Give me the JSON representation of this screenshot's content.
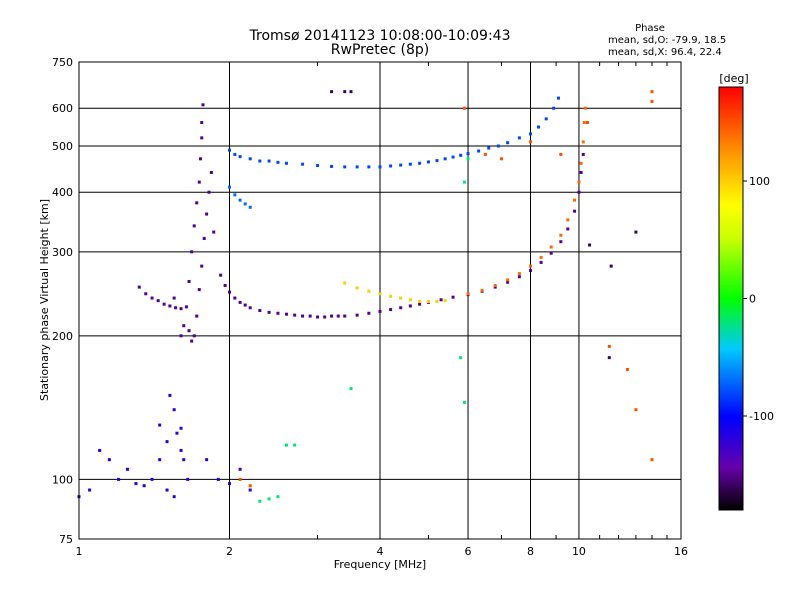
{
  "chart_data": {
    "type": "scatter",
    "title": "Tromsø 20141123 10:08:00-10:09:43",
    "subtitle": "RwPretec (8p)",
    "xlabel": "Frequency [MHz]",
    "ylabel": "Stationary phase Virtual Height [km]",
    "xscale": "log",
    "yscale": "log",
    "xlim": [
      1,
      16
    ],
    "ylim": [
      75,
      750
    ],
    "x_ticks": [
      "1",
      "2",
      "4",
      "6",
      "8",
      "10",
      "16"
    ],
    "x_tick_values": [
      1,
      2,
      4,
      6,
      8,
      10,
      16
    ],
    "y_ticks": [
      "75",
      "100",
      "200",
      "300",
      "400",
      "500",
      "600",
      "750"
    ],
    "y_tick_values": [
      75,
      100,
      200,
      300,
      400,
      500,
      600,
      750
    ],
    "grid": true,
    "phase_info": {
      "heading": "Phase",
      "line_o": "mean, sd,O: -79.9, 18.5",
      "line_x": "mean, sd,X:  96.4, 22.4"
    },
    "colorbar": {
      "label": "[deg]",
      "range": [
        -180,
        180
      ],
      "ticks": [
        "100",
        "0",
        "-100"
      ],
      "tick_values": [
        100,
        0,
        -100
      ]
    },
    "series": [
      {
        "color_phase": -150,
        "points": [
          [
            1.32,
            253
          ],
          [
            1.36,
            245
          ],
          [
            1.4,
            240
          ],
          [
            1.44,
            237
          ],
          [
            1.48,
            233
          ],
          [
            1.52,
            231
          ],
          [
            1.56,
            229
          ],
          [
            1.6,
            228
          ],
          [
            1.55,
            240
          ],
          [
            1.6,
            200
          ],
          [
            1.62,
            210
          ],
          [
            1.64,
            230
          ],
          [
            1.66,
            260
          ],
          [
            1.68,
            300
          ],
          [
            1.7,
            340
          ],
          [
            1.72,
            380
          ],
          [
            1.74,
            420
          ],
          [
            1.75,
            470
          ],
          [
            1.76,
            520
          ],
          [
            1.76,
            560
          ],
          [
            1.77,
            610
          ],
          [
            1.7,
            200
          ],
          [
            1.72,
            220
          ],
          [
            1.74,
            250
          ],
          [
            1.76,
            280
          ],
          [
            1.78,
            320
          ],
          [
            1.8,
            360
          ],
          [
            1.82,
            400
          ],
          [
            1.84,
            440
          ],
          [
            1.86,
            330
          ],
          [
            1.68,
            195
          ],
          [
            1.66,
            205
          ]
        ]
      },
      {
        "color_phase": -150,
        "points": [
          [
            1.92,
            268
          ],
          [
            1.96,
            255
          ],
          [
            2.0,
            247
          ],
          [
            2.05,
            240
          ],
          [
            2.1,
            235
          ],
          [
            2.15,
            232
          ],
          [
            2.2,
            229
          ],
          [
            2.3,
            226
          ],
          [
            2.4,
            224
          ],
          [
            2.5,
            223
          ],
          [
            2.6,
            222
          ],
          [
            2.7,
            221
          ],
          [
            2.8,
            220
          ],
          [
            2.9,
            220
          ],
          [
            3.0,
            219
          ],
          [
            3.1,
            219
          ],
          [
            3.2,
            220
          ],
          [
            3.3,
            220
          ],
          [
            3.4,
            220
          ],
          [
            3.6,
            221
          ],
          [
            3.8,
            223
          ],
          [
            4.0,
            225
          ],
          [
            4.2,
            227
          ],
          [
            4.4,
            229
          ],
          [
            4.6,
            231
          ],
          [
            4.8,
            233
          ],
          [
            5.0,
            235
          ],
          [
            5.3,
            238
          ],
          [
            5.6,
            241
          ],
          [
            6.0,
            244
          ],
          [
            6.4,
            248
          ],
          [
            6.8,
            253
          ],
          [
            7.2,
            259
          ],
          [
            7.6,
            266
          ],
          [
            8.0,
            274
          ],
          [
            8.4,
            285
          ],
          [
            8.8,
            298
          ],
          [
            9.2,
            315
          ],
          [
            9.5,
            335
          ],
          [
            9.8,
            365
          ],
          [
            10.0,
            400
          ],
          [
            10.1,
            440
          ],
          [
            10.2,
            480
          ]
        ]
      },
      {
        "color_phase": -80,
        "points": [
          [
            2.0,
            490
          ],
          [
            2.05,
            480
          ],
          [
            2.1,
            475
          ],
          [
            2.2,
            470
          ],
          [
            2.3,
            465
          ],
          [
            2.4,
            465
          ],
          [
            2.5,
            462
          ],
          [
            2.6,
            460
          ],
          [
            2.8,
            458
          ],
          [
            3.0,
            455
          ],
          [
            3.2,
            453
          ],
          [
            3.4,
            452
          ],
          [
            3.6,
            452
          ],
          [
            3.8,
            452
          ],
          [
            4.0,
            452
          ],
          [
            4.2,
            454
          ],
          [
            4.4,
            456
          ],
          [
            4.6,
            458
          ],
          [
            4.8,
            460
          ],
          [
            5.0,
            463
          ],
          [
            5.2,
            466
          ],
          [
            5.4,
            470
          ],
          [
            5.6,
            474
          ],
          [
            5.8,
            478
          ],
          [
            6.0,
            482
          ],
          [
            6.3,
            488
          ],
          [
            6.6,
            495
          ],
          [
            6.9,
            500
          ],
          [
            7.2,
            508
          ],
          [
            7.6,
            520
          ],
          [
            8.0,
            530
          ],
          [
            8.3,
            548
          ],
          [
            8.6,
            570
          ],
          [
            8.9,
            600
          ],
          [
            9.1,
            630
          ]
        ]
      },
      {
        "color_phase": -70,
        "points": [
          [
            2.0,
            410
          ],
          [
            2.05,
            395
          ],
          [
            2.1,
            385
          ],
          [
            2.15,
            378
          ],
          [
            2.2,
            372
          ]
        ]
      },
      {
        "color_phase": 100,
        "points": [
          [
            3.4,
            258
          ],
          [
            3.6,
            252
          ],
          [
            3.8,
            248
          ],
          [
            4.0,
            245
          ],
          [
            4.2,
            242
          ],
          [
            4.4,
            240
          ],
          [
            4.6,
            238
          ],
          [
            4.8,
            236
          ],
          [
            5.0,
            236
          ],
          [
            5.2,
            236
          ],
          [
            5.4,
            237
          ]
        ]
      },
      {
        "color_phase": 140,
        "points": [
          [
            6.0,
            245
          ],
          [
            6.4,
            249
          ],
          [
            6.8,
            255
          ],
          [
            7.2,
            262
          ],
          [
            7.6,
            270
          ],
          [
            8.0,
            280
          ],
          [
            8.4,
            292
          ],
          [
            8.8,
            307
          ],
          [
            9.2,
            325
          ],
          [
            9.5,
            350
          ],
          [
            9.8,
            385
          ],
          [
            10.0,
            420
          ],
          [
            10.1,
            460
          ],
          [
            10.2,
            510
          ],
          [
            10.25,
            560
          ],
          [
            10.3,
            600
          ]
        ]
      },
      {
        "color_phase": -120,
        "points": [
          [
            1.0,
            92
          ],
          [
            1.05,
            95
          ],
          [
            1.1,
            115
          ],
          [
            1.2,
            100
          ],
          [
            1.3,
            98
          ],
          [
            1.35,
            97
          ],
          [
            1.4,
            100
          ],
          [
            1.45,
            130
          ],
          [
            1.5,
            120
          ],
          [
            1.55,
            140
          ],
          [
            1.6,
            115
          ],
          [
            1.65,
            100
          ],
          [
            1.5,
            95
          ],
          [
            1.55,
            92
          ],
          [
            1.45,
            110
          ],
          [
            1.6,
            128
          ],
          [
            1.52,
            150
          ],
          [
            1.57,
            125
          ],
          [
            1.62,
            110
          ],
          [
            1.8,
            110
          ],
          [
            1.9,
            100
          ],
          [
            2.0,
            98
          ],
          [
            2.1,
            105
          ],
          [
            2.2,
            95
          ],
          [
            1.15,
            110
          ],
          [
            1.25,
            105
          ]
        ]
      },
      {
        "color_phase": -20,
        "points": [
          [
            2.3,
            90
          ],
          [
            2.4,
            91
          ],
          [
            2.5,
            92
          ],
          [
            2.6,
            118
          ],
          [
            2.7,
            118
          ],
          [
            3.5,
            155
          ],
          [
            5.8,
            180
          ],
          [
            5.9,
            145
          ],
          [
            6.0,
            470
          ],
          [
            5.9,
            420
          ]
        ]
      },
      {
        "color_phase": 150,
        "points": [
          [
            2.1,
            100
          ],
          [
            2.2,
            97
          ],
          [
            5.9,
            600
          ],
          [
            6.5,
            480
          ],
          [
            7.0,
            470
          ],
          [
            8.0,
            510
          ],
          [
            9.2,
            480
          ],
          [
            10.4,
            560
          ],
          [
            11.5,
            190
          ],
          [
            12.5,
            170
          ],
          [
            13.0,
            140
          ],
          [
            14.0,
            110
          ],
          [
            14.0,
            650
          ],
          [
            14.0,
            620
          ]
        ]
      },
      {
        "color_phase": -160,
        "points": [
          [
            3.2,
            650
          ],
          [
            3.4,
            650
          ],
          [
            3.5,
            650
          ],
          [
            11.6,
            280
          ],
          [
            11.5,
            180
          ],
          [
            10.5,
            310
          ],
          [
            13.0,
            330
          ]
        ]
      }
    ]
  }
}
